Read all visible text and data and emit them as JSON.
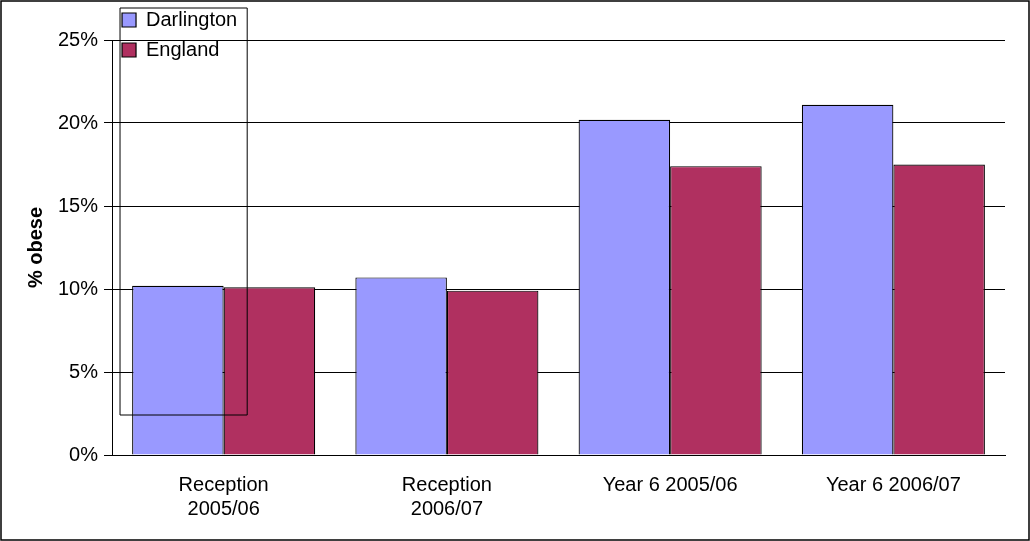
{
  "chart_data": {
    "type": "bar",
    "ylabel": "% obese",
    "categories": [
      "Reception\n2005/06",
      "Reception\n2006/07",
      "Year 6 2005/06",
      "Year 6 2006/07"
    ],
    "series": [
      {
        "name": "Darlington",
        "color": "#9999ff",
        "values": [
          10.2,
          10.7,
          20.2,
          21.1
        ]
      },
      {
        "name": "England",
        "color": "#b03060",
        "values": [
          10.1,
          9.9,
          17.4,
          17.5
        ]
      }
    ],
    "ylim": [
      0,
      25
    ],
    "yticks": [
      {
        "value": 0,
        "label": "0%"
      },
      {
        "value": 5,
        "label": "5%"
      },
      {
        "value": 10,
        "label": "10%"
      },
      {
        "value": 15,
        "label": "15%"
      },
      {
        "value": 20,
        "label": "20%"
      },
      {
        "value": 25,
        "label": "25%"
      }
    ],
    "grid": "y",
    "legend": "top left"
  }
}
